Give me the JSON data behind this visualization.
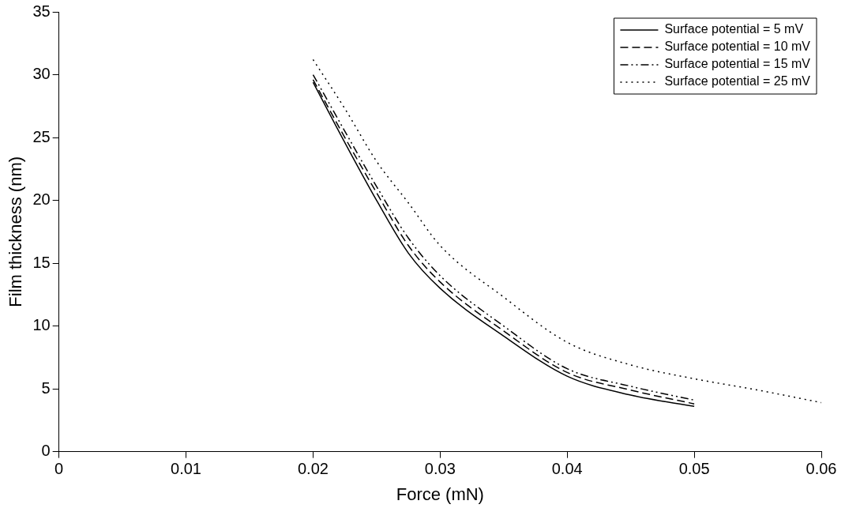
{
  "chart_data": {
    "type": "line",
    "xlabel": "Force (mN)",
    "ylabel": "Film thickness (nm)",
    "xlim": [
      0,
      0.06
    ],
    "xticks": [
      0,
      0.01,
      0.02,
      0.03,
      0.04,
      0.05,
      0.06
    ],
    "ylim": [
      0,
      35
    ],
    "yticks": [
      0,
      5,
      10,
      15,
      20,
      25,
      30,
      35
    ],
    "grid": false,
    "legend": "top right",
    "marker": "none",
    "series": [
      {
        "name": "Surface potential = 5 mV",
        "color": "#000000",
        "line_style": "solid",
        "x": [
          0.02,
          0.0225,
          0.025,
          0.0275,
          0.03,
          0.035,
          0.04,
          0.045,
          0.05
        ],
        "values": [
          29.4,
          24.6,
          20.0,
          15.8,
          13.0,
          9.2,
          6.0,
          4.5,
          3.6
        ]
      },
      {
        "name": "Surface potential = 10 mV",
        "color": "#000000",
        "line_style": "dashed",
        "x": [
          0.02,
          0.0225,
          0.025,
          0.0275,
          0.03,
          0.035,
          0.04,
          0.045,
          0.05
        ],
        "values": [
          29.6,
          25.0,
          20.6,
          16.4,
          13.5,
          9.6,
          6.3,
          4.9,
          3.8
        ]
      },
      {
        "name": "Surface potential = 15 mV",
        "color": "#000000",
        "line_style": "dashdot",
        "x": [
          0.02,
          0.0225,
          0.025,
          0.0275,
          0.03,
          0.035,
          0.04,
          0.045,
          0.05
        ],
        "values": [
          30.0,
          25.5,
          21.1,
          17.0,
          14.0,
          10.0,
          6.6,
          5.2,
          4.1
        ]
      },
      {
        "name": "Surface potential = 25 mV",
        "color": "#000000",
        "line_style": "dotted",
        "x": [
          0.02,
          0.0225,
          0.025,
          0.0275,
          0.03,
          0.035,
          0.04,
          0.045,
          0.05,
          0.055,
          0.06
        ],
        "values": [
          31.2,
          27.3,
          23.1,
          19.8,
          16.4,
          12.3,
          8.7,
          6.9,
          5.8,
          4.9,
          3.9
        ]
      }
    ]
  }
}
